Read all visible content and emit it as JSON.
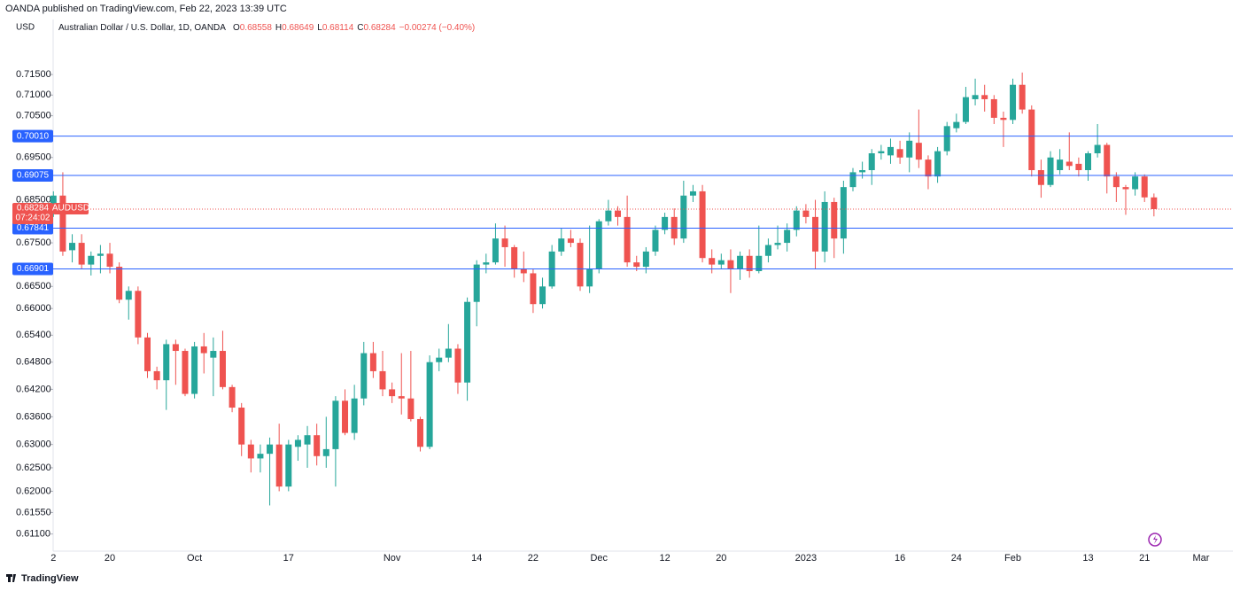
{
  "chart_data": {
    "type": "candlestick",
    "publisher": "OANDA published on TradingView.com, Feb 22, 2023 13:39 UTC",
    "currency": "USD",
    "symbol_description": "Australian Dollar / U.S. Dollar, 1D, OANDA",
    "ohlc_legend": [
      {
        "label": "O",
        "value": "0.68558"
      },
      {
        "label": "H",
        "value": "0.68649"
      },
      {
        "label": "L",
        "value": "0.68114"
      },
      {
        "label": "C",
        "value": "0.68284"
      }
    ],
    "change": "−0.00274 (−0.40%)",
    "categories": [
      "2",
      null,
      null,
      null,
      null,
      null,
      "20",
      null,
      null,
      null,
      null,
      null,
      null,
      null,
      null,
      "Oct",
      null,
      null,
      null,
      null,
      null,
      null,
      null,
      null,
      null,
      "17",
      null,
      null,
      null,
      null,
      null,
      null,
      null,
      null,
      null,
      null,
      "Nov",
      null,
      null,
      null,
      null,
      null,
      null,
      null,
      null,
      "14",
      null,
      null,
      null,
      null,
      null,
      "22",
      null,
      null,
      null,
      null,
      null,
      null,
      "Dec",
      null,
      null,
      null,
      null,
      null,
      null,
      "12",
      null,
      null,
      null,
      null,
      null,
      "20",
      null,
      null,
      null,
      null,
      null,
      null,
      null,
      null,
      "2023",
      null,
      null,
      null,
      null,
      null,
      null,
      null,
      null,
      null,
      "16",
      null,
      null,
      null,
      null,
      null,
      "24",
      null,
      null,
      null,
      null,
      null,
      "Feb",
      null,
      null,
      null,
      null,
      null,
      null,
      null,
      "13",
      null,
      null,
      null,
      null,
      null,
      "21",
      null,
      null,
      null,
      null,
      null,
      "Mar"
    ],
    "open": [
      0.682,
      0.686,
      0.6733,
      0.675,
      0.67,
      0.672,
      0.6725,
      0.6695,
      0.662,
      0.664,
      0.6535,
      0.646,
      0.644,
      0.652,
      0.6505,
      0.641,
      0.6515,
      0.649,
      0.6505,
      0.6425,
      0.638,
      0.63,
      0.627,
      0.628,
      0.63,
      0.621,
      0.6295,
      0.63,
      0.632,
      0.6275,
      0.629,
      0.6395,
      0.6325,
      0.64,
      0.65,
      0.646,
      0.642,
      0.6405,
      0.64,
      0.6355,
      0.6295,
      0.648,
      0.649,
      0.651,
      0.6435,
      0.6615,
      0.67,
      0.6705,
      0.676,
      0.674,
      0.669,
      0.668,
      0.661,
      0.665,
      0.673,
      0.676,
      0.675,
      0.665,
      0.669,
      0.68,
      0.6825,
      0.681,
      0.6705,
      0.6695,
      0.673,
      0.678,
      0.681,
      0.676,
      0.686,
      0.687,
      0.6715,
      0.67,
      0.671,
      0.669,
      0.672,
      0.6685,
      0.672,
      0.6745,
      0.675,
      0.678,
      0.6825,
      0.681,
      0.673,
      0.6845,
      0.676,
      0.688,
      0.6915,
      0.692,
      0.696,
      0.6955,
      0.697,
      0.695,
      0.6985,
      0.6945,
      0.6905,
      0.6965,
      0.702,
      0.7035,
      0.709,
      0.71,
      0.709,
      0.7045,
      0.704,
      0.7125,
      0.7065,
      0.692,
      0.6885,
      0.692,
      0.694,
      0.6935,
      0.692,
      0.696,
      0.698,
      0.6905,
      0.688,
      0.6875,
      0.6905,
      0.68558,
      null,
      null,
      null,
      null,
      null
    ],
    "high": [
      0.687,
      0.6915,
      0.677,
      0.677,
      0.673,
      0.6745,
      0.675,
      0.6705,
      0.665,
      0.665,
      0.6545,
      0.647,
      0.653,
      0.653,
      0.651,
      0.6525,
      0.6545,
      0.6535,
      0.655,
      0.643,
      0.639,
      0.631,
      0.63,
      0.6315,
      0.6345,
      0.631,
      0.632,
      0.634,
      0.6345,
      0.636,
      0.6405,
      0.642,
      0.643,
      0.6525,
      0.6525,
      0.6505,
      0.6435,
      0.65,
      0.6505,
      0.636,
      0.6495,
      0.651,
      0.6565,
      0.652,
      0.6625,
      0.671,
      0.6725,
      0.6795,
      0.679,
      0.6745,
      0.673,
      0.669,
      0.667,
      0.6745,
      0.6785,
      0.678,
      0.676,
      0.679,
      0.6805,
      0.685,
      0.6835,
      0.686,
      0.672,
      0.674,
      0.679,
      0.682,
      0.683,
      0.6895,
      0.6885,
      0.6885,
      0.6735,
      0.6725,
      0.6735,
      0.673,
      0.6735,
      0.679,
      0.676,
      0.679,
      0.6795,
      0.6835,
      0.684,
      0.685,
      0.687,
      0.6855,
      0.6895,
      0.6925,
      0.694,
      0.697,
      0.698,
      0.6995,
      0.699,
      0.701,
      0.7065,
      0.6955,
      0.6975,
      0.7035,
      0.7055,
      0.712,
      0.714,
      0.7125,
      0.71,
      0.706,
      0.714,
      0.7155,
      0.7075,
      0.6945,
      0.6965,
      0.697,
      0.701,
      0.695,
      0.6965,
      0.703,
      0.6985,
      0.6915,
      0.6885,
      0.6915,
      0.691,
      0.68649,
      null,
      null,
      null,
      null,
      null
    ],
    "low": [
      0.681,
      0.672,
      0.6705,
      0.669,
      0.6675,
      0.668,
      0.668,
      0.6612,
      0.6575,
      0.652,
      0.6445,
      0.642,
      0.6375,
      0.643,
      0.6405,
      0.64,
      0.6455,
      0.6405,
      0.642,
      0.637,
      0.6275,
      0.624,
      0.624,
      0.617,
      0.62,
      0.62,
      0.6265,
      0.625,
      0.6255,
      0.625,
      0.621,
      0.632,
      0.631,
      0.6385,
      0.6445,
      0.6405,
      0.639,
      0.6365,
      0.635,
      0.6285,
      0.629,
      0.646,
      0.648,
      0.641,
      0.6395,
      0.656,
      0.668,
      0.67,
      0.6695,
      0.667,
      0.666,
      0.659,
      0.66,
      0.6645,
      0.672,
      0.674,
      0.664,
      0.6635,
      0.668,
      0.679,
      0.679,
      0.6695,
      0.6685,
      0.668,
      0.672,
      0.677,
      0.6745,
      0.675,
      0.6845,
      0.6705,
      0.668,
      0.669,
      0.6635,
      0.6665,
      0.667,
      0.668,
      0.6705,
      0.6735,
      0.673,
      0.6765,
      0.6795,
      0.669,
      0.6705,
      0.6715,
      0.6725,
      0.687,
      0.69,
      0.6885,
      0.6945,
      0.6935,
      0.6935,
      0.6915,
      0.6925,
      0.6875,
      0.689,
      0.6955,
      0.701,
      0.703,
      0.7075,
      0.706,
      0.703,
      0.6975,
      0.703,
      0.7055,
      0.6905,
      0.6855,
      0.688,
      0.691,
      0.692,
      0.6905,
      0.6895,
      0.695,
      0.6865,
      0.6845,
      0.6815,
      0.686,
      0.6845,
      0.68114,
      null,
      null,
      null,
      null,
      null
    ],
    "close": [
      0.686,
      0.673,
      0.675,
      0.67,
      0.672,
      0.6725,
      0.6695,
      0.662,
      0.664,
      0.6535,
      0.646,
      0.644,
      0.652,
      0.6505,
      0.641,
      0.6515,
      0.65,
      0.6505,
      0.6425,
      0.638,
      0.63,
      0.627,
      0.628,
      0.63,
      0.621,
      0.63,
      0.631,
      0.632,
      0.6275,
      0.629,
      0.6395,
      0.6325,
      0.64,
      0.65,
      0.646,
      0.642,
      0.6405,
      0.64,
      0.6355,
      0.6295,
      0.648,
      0.649,
      0.651,
      0.6435,
      0.6615,
      0.67,
      0.6705,
      0.676,
      0.674,
      0.669,
      0.668,
      0.661,
      0.665,
      0.673,
      0.676,
      0.675,
      0.665,
      0.669,
      0.68,
      0.6825,
      0.681,
      0.6705,
      0.6695,
      0.673,
      0.678,
      0.681,
      0.676,
      0.686,
      0.687,
      0.6715,
      0.67,
      0.671,
      0.669,
      0.672,
      0.6685,
      0.672,
      0.6745,
      0.675,
      0.678,
      0.6825,
      0.681,
      0.673,
      0.6845,
      0.676,
      0.688,
      0.6915,
      0.692,
      0.696,
      0.6965,
      0.6975,
      0.695,
      0.699,
      0.6945,
      0.6905,
      0.6965,
      0.7025,
      0.7035,
      0.7095,
      0.71,
      0.709,
      0.7045,
      0.704,
      0.7125,
      0.7065,
      0.692,
      0.6885,
      0.695,
      0.6945,
      0.693,
      0.692,
      0.696,
      0.698,
      0.6905,
      0.688,
      0.6875,
      0.6905,
      0.68558,
      0.68284,
      null,
      null,
      null,
      null,
      null
    ],
    "up_color": "#26a69a",
    "down_color": "#ef5350",
    "ylim": [
      0.6078,
      0.7286
    ],
    "log_scale": true,
    "grid": false,
    "yticks": [
      {
        "value": 0.715,
        "label": "0.71500"
      },
      {
        "value": 0.71,
        "label": "0.71000"
      },
      {
        "value": 0.705,
        "label": "0.70500"
      },
      {
        "value": 0.695,
        "label": "0.69500"
      },
      {
        "value": 0.685,
        "label": "0.68500"
      },
      {
        "value": 0.675,
        "label": "0.67500"
      },
      {
        "value": 0.665,
        "label": "0.66500"
      },
      {
        "value": 0.66,
        "label": "0.66000"
      },
      {
        "value": 0.654,
        "label": "0.65400"
      },
      {
        "value": 0.648,
        "label": "0.64800"
      },
      {
        "value": 0.642,
        "label": "0.64200"
      },
      {
        "value": 0.636,
        "label": "0.63600"
      },
      {
        "value": 0.63,
        "label": "0.63000"
      },
      {
        "value": 0.625,
        "label": "0.62500"
      },
      {
        "value": 0.62,
        "label": "0.62000"
      },
      {
        "value": 0.6155,
        "label": "0.61550"
      },
      {
        "value": 0.611,
        "label": "0.61100"
      }
    ],
    "levels": [
      {
        "value": 0.7001,
        "label": "0.70010"
      },
      {
        "value": 0.69075,
        "label": "0.69075"
      },
      {
        "value": 0.67841,
        "label": "0.67841"
      },
      {
        "value": 0.66901,
        "label": "0.66901"
      }
    ],
    "level_color": "#2962ff",
    "last_price": {
      "value": 0.68284,
      "label": "0.68284",
      "symbol": "AUDUSD",
      "countdown": "07:24:02"
    },
    "brand": "TradingView"
  }
}
